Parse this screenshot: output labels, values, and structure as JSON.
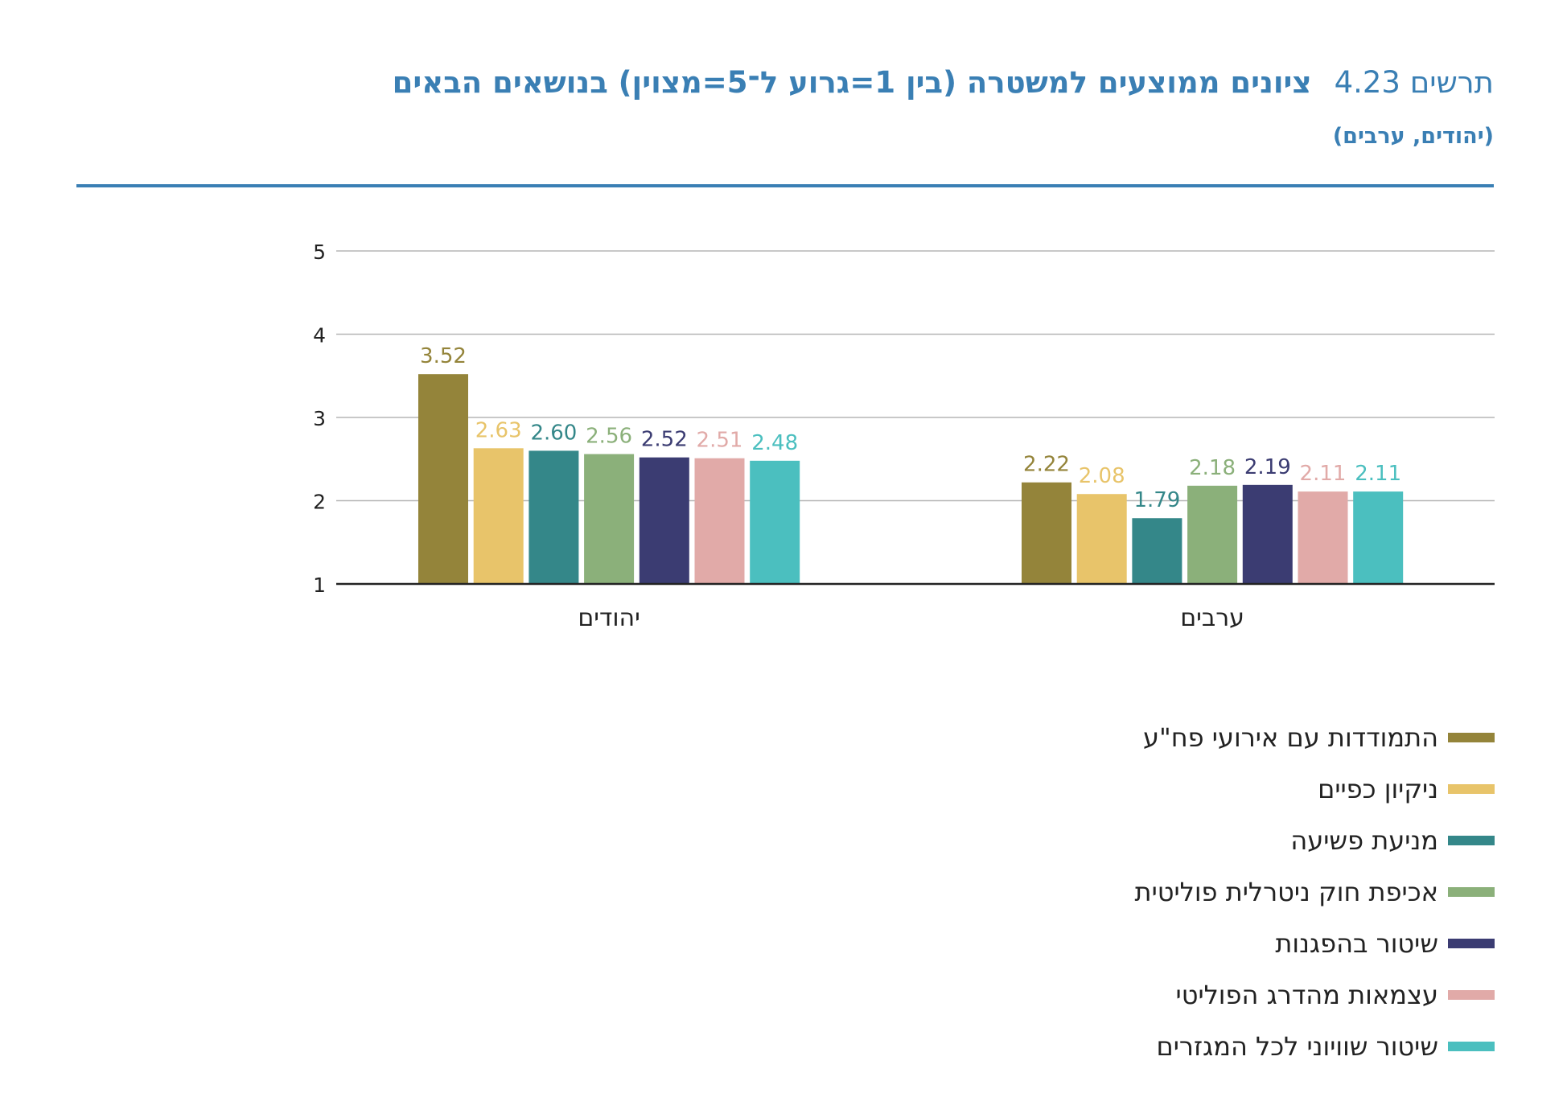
{
  "header": {
    "figure_number": "תרשים 4.23",
    "title": "ציונים ממוצעים למשטרה (בין 1=גרוע ל־5=מצוין) בנושאים הבאים",
    "subtitle": "(יהודים, ערבים)"
  },
  "colors": {
    "accent": "#3a7fb4",
    "series": [
      "#94843a",
      "#e8c46a",
      "#348789",
      "#8bb07a",
      "#3b3c72",
      "#e1aaa8",
      "#4bbfbf"
    ]
  },
  "chart_data": {
    "type": "bar",
    "categories": [
      "יהודים",
      "ערבים"
    ],
    "ylim": [
      1,
      5
    ],
    "yticks": [
      1,
      2,
      3,
      4,
      5
    ],
    "grid": true,
    "legend_position": "bottom-right",
    "series": [
      {
        "name": "התמודדות עם אירועי פח\"ע",
        "values": [
          3.52,
          2.22
        ]
      },
      {
        "name": "ניקיון כפיים",
        "values": [
          2.63,
          2.08
        ]
      },
      {
        "name": "מניעת פשיעה",
        "values": [
          2.6,
          1.79
        ]
      },
      {
        "name": "אכיפת חוק ניטרלית פוליטית",
        "values": [
          2.56,
          2.18
        ]
      },
      {
        "name": "שיטור בהפגנות",
        "values": [
          2.52,
          2.19
        ]
      },
      {
        "name": "עצמאות מהדרג הפוליטי",
        "values": [
          2.51,
          2.11
        ]
      },
      {
        "name": "שיטור שוויוני לכל המגזרים",
        "values": [
          2.48,
          2.11
        ]
      }
    ]
  }
}
